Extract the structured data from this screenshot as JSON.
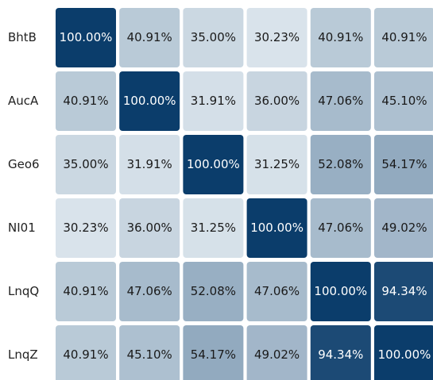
{
  "chart_data": {
    "type": "heatmap",
    "y_categories": [
      "BhtB",
      "AucA",
      "Geo6",
      "NI01",
      "LnqQ",
      "LnqZ"
    ],
    "values": [
      [
        100,
        40.91,
        35,
        30.23,
        40.91,
        40.91
      ],
      [
        40.91,
        100,
        31.91,
        36,
        47.06,
        45.1
      ],
      [
        35,
        31.91,
        100,
        31.25,
        52.08,
        54.17
      ],
      [
        30.23,
        36,
        31.25,
        100,
        47.06,
        49.02
      ],
      [
        40.91,
        47.06,
        52.08,
        47.06,
        100,
        94.34
      ],
      [
        40.91,
        45.1,
        54.17,
        49.02,
        94.34,
        100
      ]
    ],
    "value_labels": [
      [
        "100.00%",
        "40.91%",
        "35.00%",
        "30.23%",
        "40.91%",
        "40.91%"
      ],
      [
        "40.91%",
        "100.00%",
        "31.91%",
        "36.00%",
        "47.06%",
        "45.10%"
      ],
      [
        "35.00%",
        "31.91%",
        "100.00%",
        "31.25%",
        "52.08%",
        "54.17%"
      ],
      [
        "30.23%",
        "36.00%",
        "31.25%",
        "100.00%",
        "47.06%",
        "49.02%"
      ],
      [
        "40.91%",
        "47.06%",
        "52.08%",
        "47.06%",
        "100.00%",
        "94.34%"
      ],
      [
        "40.91%",
        "45.10%",
        "54.17%",
        "49.02%",
        "94.34%",
        "100.00%"
      ]
    ],
    "colors": [
      "#d9e3eb",
      "#0b3d6b"
    ]
  }
}
